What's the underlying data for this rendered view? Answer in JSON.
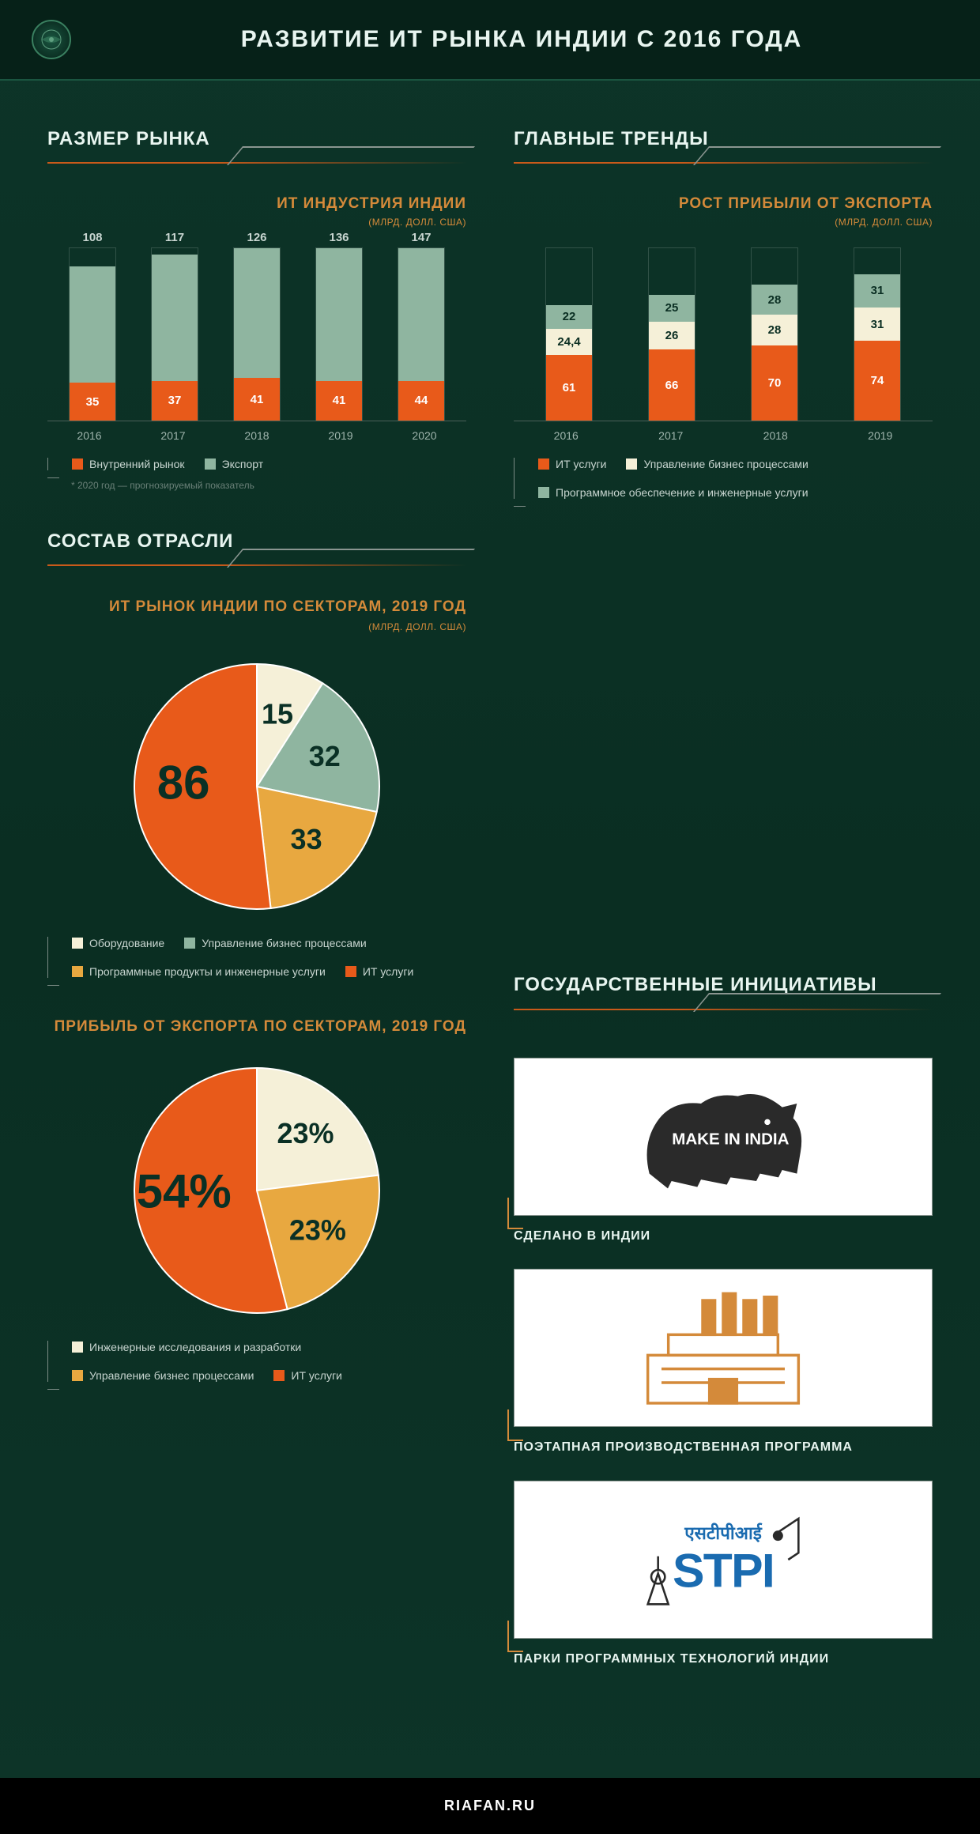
{
  "colors": {
    "orange": "#e85a1a",
    "cream": "#f5f0d8",
    "sage": "#8fb5a0",
    "amber": "#e8a840",
    "accent_title": "#d48a3a"
  },
  "header": {
    "title": "РАЗВИТИЕ ИТ РЫНКА ИНДИИ С 2016 ГОДА"
  },
  "market_size": {
    "title": "РАЗМЕР РЫНКА",
    "subtitle": "ИТ ИНДУСТРИЯ ИНДИИ",
    "units": "(МЛРД. ДОЛЛ. США)",
    "type": "stacked-bar",
    "ylim_max": 160,
    "years": [
      "2016",
      "2017",
      "2018",
      "2019",
      "2020"
    ],
    "series": [
      {
        "name": "Внутренний рынок",
        "color": "#e85a1a",
        "values": [
          35,
          37,
          41,
          41,
          44
        ]
      },
      {
        "name": "Экспорт",
        "color": "#8fb5a0",
        "values": [
          108,
          117,
          126,
          136,
          147
        ],
        "show_top": true
      }
    ],
    "footnote": "* 2020 год — прогнозируемый показатель"
  },
  "trends": {
    "title": "ГЛАВНЫЕ ТРЕНДЫ",
    "subtitle": "РОСТ ПРИБЫЛИ ОТ ЭКСПОРТА",
    "units": "(МЛРД. ДОЛЛ. США)",
    "type": "stacked-bar",
    "ylim_max": 160,
    "years": [
      "2016",
      "2017",
      "2018",
      "2019"
    ],
    "series": [
      {
        "name": "ИТ услуги",
        "color": "#e85a1a",
        "values": [
          61,
          66,
          70,
          74
        ]
      },
      {
        "name": "Управление бизнес процессами",
        "color": "#f5f0d8",
        "values": [
          24.4,
          26,
          28,
          31
        ],
        "labels": [
          "24,4",
          "26",
          "28",
          "31"
        ]
      },
      {
        "name": "Программное обеспечение и инженерные услуги",
        "color": "#8fb5a0",
        "values": [
          22,
          25,
          28,
          31
        ]
      }
    ]
  },
  "composition": {
    "title": "СОСТАВ ОТРАСЛИ",
    "pie1": {
      "subtitle": "ИТ РЫНОК ИНДИИ ПО СЕКТОРАМ, 2019 ГОД",
      "units": "(МЛРД. ДОЛЛ. США)",
      "type": "pie",
      "slices": [
        {
          "label": "15",
          "value": 15,
          "color": "#f5f0d8"
        },
        {
          "label": "32",
          "value": 32,
          "color": "#8fb5a0"
        },
        {
          "label": "33",
          "value": 33,
          "color": "#e8a840"
        },
        {
          "label": "86",
          "value": 86,
          "color": "#e85a1a"
        }
      ],
      "legend": [
        {
          "name": "Оборудование",
          "color": "#f5f0d8"
        },
        {
          "name": "Управление бизнес процессами",
          "color": "#8fb5a0"
        },
        {
          "name": "Программные продукты и инженерные услуги",
          "color": "#e8a840"
        },
        {
          "name": "ИТ услуги",
          "color": "#e85a1a"
        }
      ]
    },
    "pie2": {
      "subtitle": "ПРИБЫЛЬ ОТ ЭКСПОРТА ПО СЕКТОРАМ, 2019 ГОД",
      "type": "pie",
      "slices": [
        {
          "label": "23%",
          "value": 23,
          "color": "#f5f0d8"
        },
        {
          "label": "23%",
          "value": 23,
          "color": "#e8a840"
        },
        {
          "label": "54%",
          "value": 54,
          "color": "#e85a1a"
        }
      ],
      "legend": [
        {
          "name": "Инженерные исследования и разработки",
          "color": "#f5f0d8"
        },
        {
          "name": "Управление бизнес процессами",
          "color": "#e8a840"
        },
        {
          "name": "ИТ услуги",
          "color": "#e85a1a"
        }
      ]
    }
  },
  "initiatives": {
    "title": "ГОСУДАРСТВЕННЫЕ ИНИЦИАТИВЫ",
    "items": [
      {
        "label": "СДЕЛАНО В ИНДИИ",
        "icon": "lion"
      },
      {
        "label": "ПОЭТАПНАЯ ПРОИЗВОДСТВЕННАЯ ПРОГРАММА",
        "icon": "factory"
      },
      {
        "label": "ПАРКИ ПРОГРАММНЫХ ТЕХНОЛОГИЙ ИНДИИ",
        "icon": "stpi"
      }
    ]
  },
  "footer": {
    "text": "RIAFAN.RU"
  }
}
